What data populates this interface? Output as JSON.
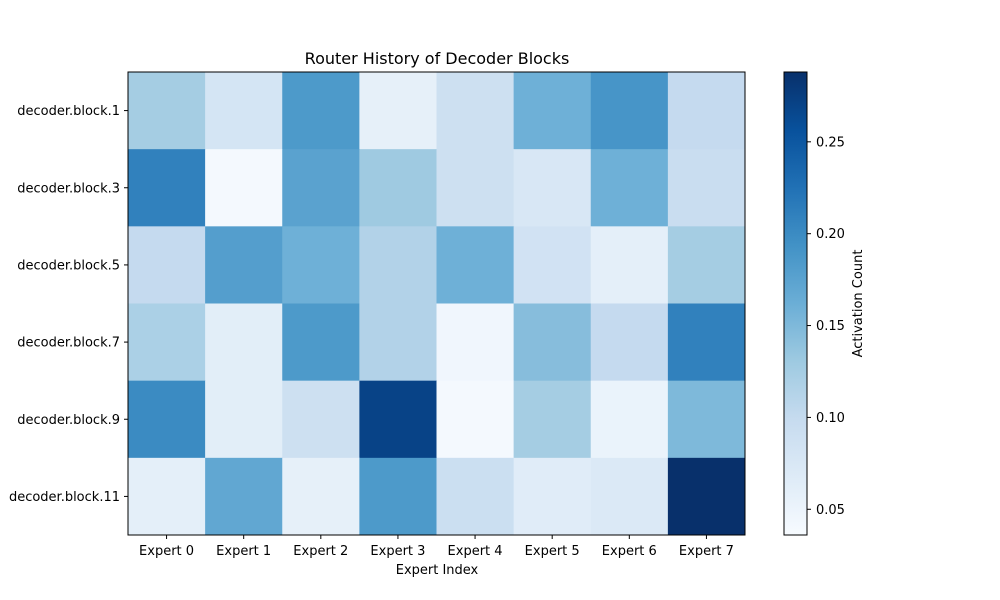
{
  "chart_data": {
    "type": "heatmap",
    "title": "Router History of Decoder Blocks",
    "xlabel": "Expert Index",
    "ylabel": "",
    "x_categories": [
      "Expert 0",
      "Expert 1",
      "Expert 2",
      "Expert 3",
      "Expert 4",
      "Expert 5",
      "Expert 6",
      "Expert 7"
    ],
    "y_categories": [
      "decoder.block.1",
      "decoder.block.3",
      "decoder.block.5",
      "decoder.block.7",
      "decoder.block.9",
      "decoder.block.11"
    ],
    "values": [
      [
        0.125,
        0.08,
        0.185,
        0.058,
        0.09,
        0.16,
        0.19,
        0.1
      ],
      [
        0.21,
        0.04,
        0.175,
        0.13,
        0.09,
        0.075,
        0.16,
        0.095
      ],
      [
        0.1,
        0.18,
        0.16,
        0.115,
        0.16,
        0.085,
        0.06,
        0.125
      ],
      [
        0.12,
        0.062,
        0.185,
        0.115,
        0.045,
        0.145,
        0.1,
        0.21
      ],
      [
        0.2,
        0.062,
        0.09,
        0.27,
        0.04,
        0.125,
        0.052,
        0.15
      ],
      [
        0.06,
        0.17,
        0.058,
        0.185,
        0.092,
        0.065,
        0.072,
        0.288
      ]
    ],
    "colorbar": {
      "label": "Activation Count",
      "min": 0.036,
      "max": 0.288,
      "ticks": [
        0.05,
        0.1,
        0.15,
        0.2,
        0.25
      ],
      "tick_labels": [
        "0.05",
        "0.10",
        "0.15",
        "0.20",
        "0.25"
      ],
      "colormap": "Blues"
    },
    "grid": false
  }
}
